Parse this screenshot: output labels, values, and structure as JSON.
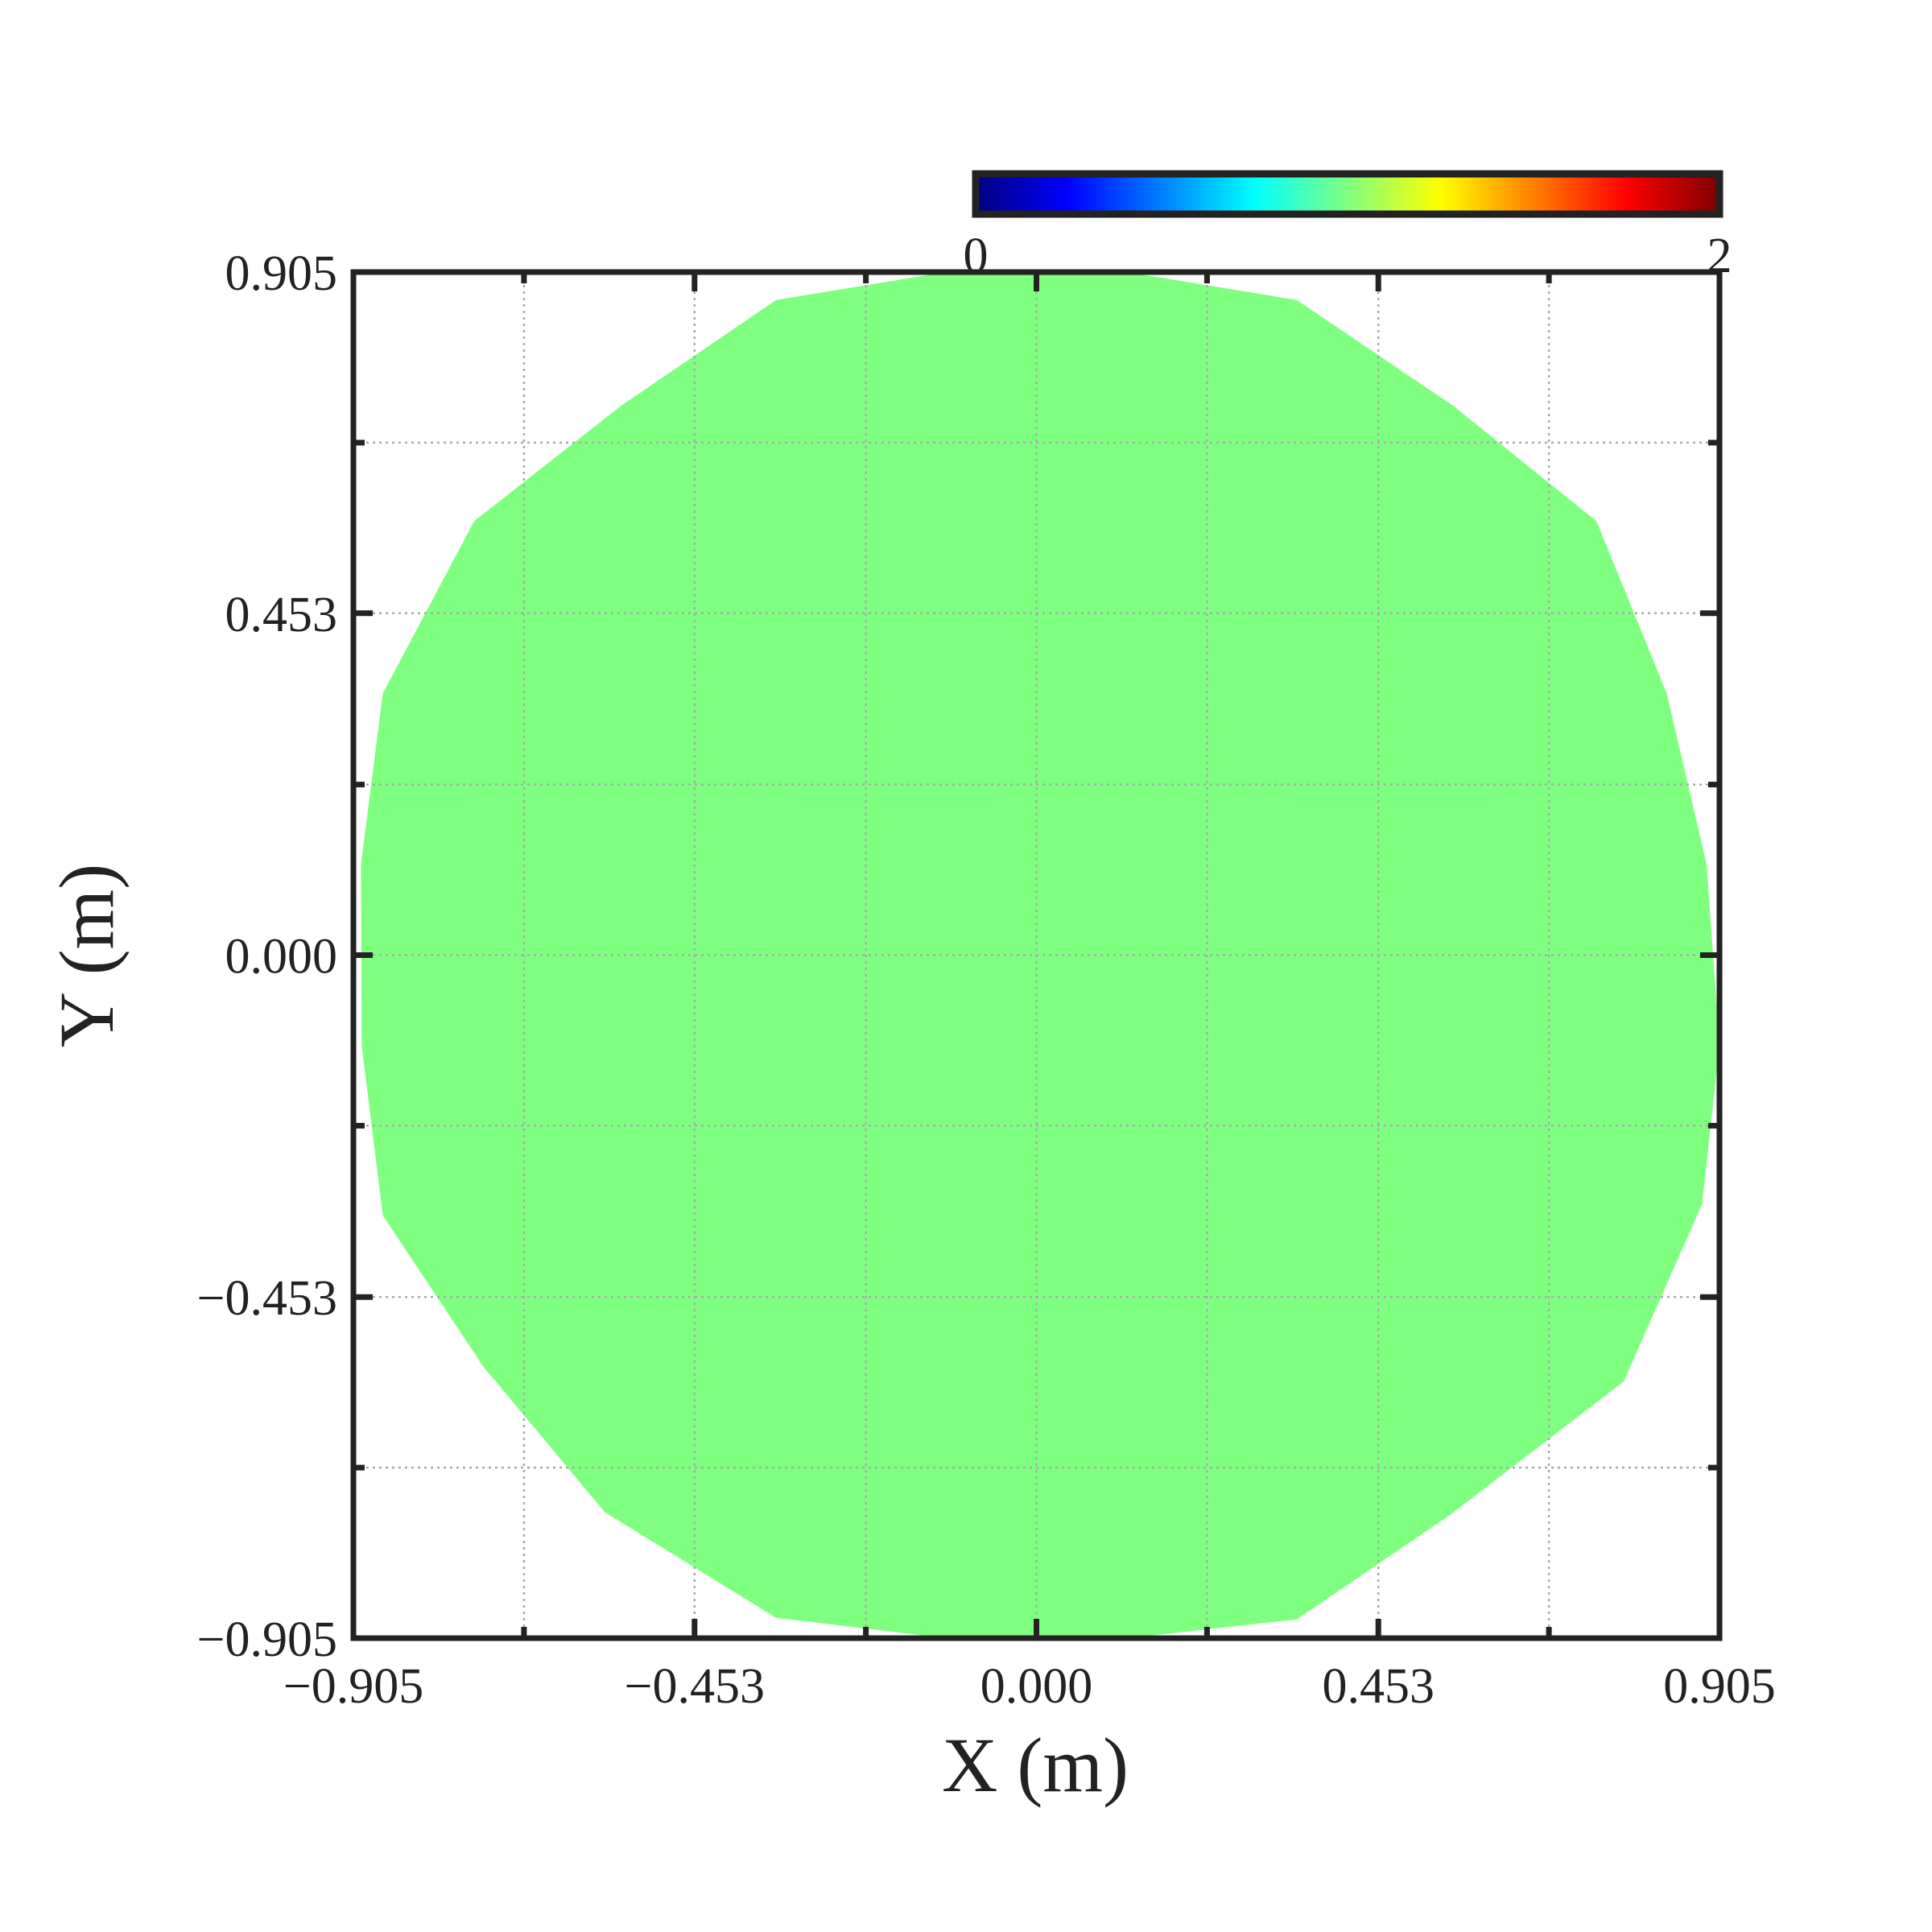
{
  "chart_data": {
    "type": "heatmap",
    "title": "",
    "xlabel": "X (m)",
    "ylabel": "Y (m)",
    "xlim": [
      -0.905,
      0.905
    ],
    "ylim": [
      -0.905,
      0.905
    ],
    "x_ticks": [
      -0.905,
      -0.453,
      0.0,
      0.453,
      0.905
    ],
    "y_ticks": [
      -0.905,
      -0.453,
      0.0,
      0.453,
      0.905
    ],
    "x_tick_labels": [
      "−0.905",
      "−0.453",
      "0.000",
      "0.453",
      "0.905"
    ],
    "y_tick_labels": [
      "−0.905",
      "−0.453",
      "0.000",
      "0.453",
      "0.905"
    ],
    "minor_ticks": [
      -0.679,
      -0.226,
      0.226,
      0.679
    ],
    "grid": true,
    "colorbar": {
      "position": "top-right",
      "min": 0,
      "max": 2,
      "min_label": "0",
      "max_label": "2",
      "colormap": "jet",
      "colors": [
        "#00007f",
        "#0000ff",
        "#007fff",
        "#00ffff",
        "#7fff7f",
        "#ffff00",
        "#ff7f00",
        "#ff0000",
        "#7f0000"
      ]
    },
    "field": {
      "shape": "disk",
      "value": 1.0,
      "color": "#7fff7f",
      "boundary": [
        [
          -0.345,
          0.868
        ],
        [
          -0.12,
          0.905
        ],
        [
          0.12,
          0.905
        ],
        [
          0.345,
          0.868
        ],
        [
          0.552,
          0.728
        ],
        [
          0.742,
          0.575
        ],
        [
          0.835,
          0.347
        ],
        [
          0.888,
          0.12
        ],
        [
          0.905,
          -0.12
        ],
        [
          0.882,
          -0.33
        ],
        [
          0.778,
          -0.565
        ],
        [
          0.549,
          -0.741
        ],
        [
          0.345,
          -0.88
        ],
        [
          0.12,
          -0.905
        ],
        [
          -0.12,
          -0.905
        ],
        [
          -0.345,
          -0.878
        ],
        [
          -0.572,
          -0.738
        ],
        [
          -0.733,
          -0.545
        ],
        [
          -0.866,
          -0.345
        ],
        [
          -0.894,
          -0.12
        ],
        [
          -0.895,
          0.12
        ],
        [
          -0.866,
          0.347
        ],
        [
          -0.745,
          0.575
        ],
        [
          -0.55,
          0.728
        ]
      ]
    }
  }
}
